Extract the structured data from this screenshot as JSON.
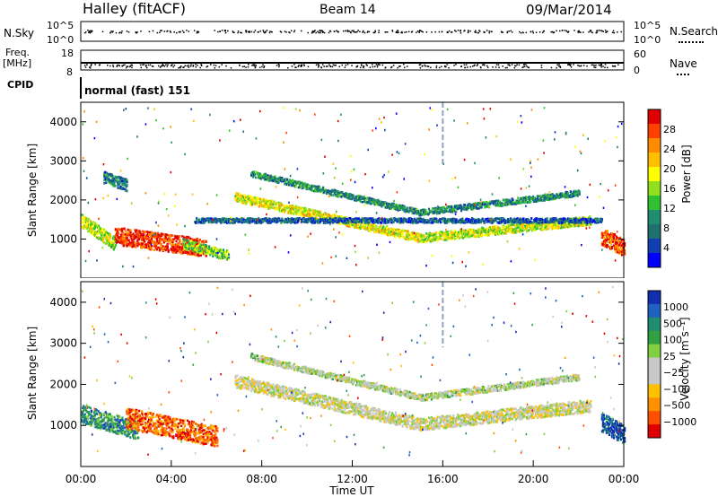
{
  "header": {
    "station": "Halley (fitACF)",
    "beam": "Beam 14",
    "date": "09/Mar/2014"
  },
  "strips": {
    "nsky_label": "N.Sky",
    "nsky_ticks": [
      "10^5",
      "10^0"
    ],
    "nsearch_label": "N.Search",
    "nsearch_ticks": [
      "10^5",
      "10^0"
    ],
    "freq_label": "Freq.",
    "freq_unit": "[MHz]",
    "freq_ticks": [
      "18",
      "8"
    ],
    "nave_label": "Nave",
    "nave_ticks": [
      "60",
      "0"
    ],
    "cpid_label": "CPID",
    "cpid_text": "normal (fast) 151"
  },
  "chart_data": [
    {
      "type": "heatmap",
      "name": "power",
      "ylabel": "Slant Range [km]",
      "ylim": [
        0,
        4500
      ],
      "yticks": [
        1000,
        2000,
        3000,
        4000
      ],
      "xlim": [
        0,
        24
      ],
      "colorbar": {
        "label": "Power [dB]",
        "ticks": [
          "28",
          "24",
          "20",
          "16",
          "12",
          "8",
          "4"
        ],
        "colors": [
          "#e00000",
          "#ff4000",
          "#ff8c00",
          "#ffc000",
          "#ffff00",
          "#90e020",
          "#30c030",
          "#208c70",
          "#207070",
          "#1040b0",
          "#0000ff"
        ]
      },
      "echo_bands": [
        {
          "t0": 0.0,
          "t1": 1.5,
          "r_start": 1500,
          "r_end": 900,
          "width": 350,
          "level": 0.55
        },
        {
          "t0": 1.0,
          "t1": 2.0,
          "r_start": 2600,
          "r_end": 2400,
          "width": 300,
          "level": 0.25
        },
        {
          "t0": 1.5,
          "t1": 5.5,
          "r_start": 1100,
          "r_end": 800,
          "width": 450,
          "level": 0.9
        },
        {
          "t0": 4.5,
          "t1": 6.5,
          "r_start": 900,
          "r_end": 600,
          "width": 250,
          "level": 0.45
        },
        {
          "t0": 6.8,
          "t1": 15.0,
          "r_start": 2100,
          "r_end": 1050,
          "width": 220,
          "level": 0.6
        },
        {
          "t0": 15.0,
          "t1": 22.5,
          "r_start": 1050,
          "r_end": 1500,
          "width": 220,
          "level": 0.55
        },
        {
          "t0": 7.5,
          "t1": 15.0,
          "r_start": 2700,
          "r_end": 1700,
          "width": 150,
          "level": 0.3
        },
        {
          "t0": 15.0,
          "t1": 22.0,
          "r_start": 1700,
          "r_end": 2200,
          "width": 150,
          "level": 0.3
        },
        {
          "t0": 5.0,
          "t1": 23.0,
          "r_start": 1500,
          "r_end": 1500,
          "width": 120,
          "level": 0.2
        },
        {
          "t0": 23.0,
          "t1": 24.0,
          "r_start": 1100,
          "r_end": 800,
          "width": 450,
          "level": 0.85
        }
      ]
    },
    {
      "type": "heatmap",
      "name": "velocity",
      "ylabel": "Slant Range [km]",
      "xlabel": "Time UT",
      "ylim": [
        0,
        4500
      ],
      "yticks": [
        1000,
        2000,
        3000,
        4000
      ],
      "xlim": [
        0,
        24
      ],
      "xticks": [
        "00:00",
        "04:00",
        "08:00",
        "12:00",
        "16:00",
        "20:00",
        "00:00"
      ],
      "colorbar": {
        "label": "Velocity [m s⁻¹]",
        "ticks": [
          "1000",
          "500",
          "100",
          "25",
          "−25",
          "−100",
          "−500",
          "−1000"
        ],
        "colors": [
          "#1030b0",
          "#2060c0",
          "#208c70",
          "#30a040",
          "#80d040",
          "#c8c8c8",
          "#c8c8c8",
          "#ffc000",
          "#ff9000",
          "#ff5000",
          "#e00000"
        ]
      },
      "echo_bands": [
        {
          "t0": 0.0,
          "t1": 2.5,
          "r_start": 1300,
          "r_end": 900,
          "width": 450,
          "level": 0.25
        },
        {
          "t0": 2.0,
          "t1": 6.0,
          "r_start": 1200,
          "r_end": 750,
          "width": 500,
          "level": 0.85
        },
        {
          "t0": 6.8,
          "t1": 15.0,
          "r_start": 2100,
          "r_end": 1050,
          "width": 300,
          "level": 0.55
        },
        {
          "t0": 15.0,
          "t1": 22.5,
          "r_start": 1050,
          "r_end": 1500,
          "width": 300,
          "level": 0.55
        },
        {
          "t0": 7.5,
          "t1": 15.0,
          "r_start": 2700,
          "r_end": 1700,
          "width": 150,
          "level": 0.5
        },
        {
          "t0": 15.0,
          "t1": 22.0,
          "r_start": 1700,
          "r_end": 2200,
          "width": 150,
          "level": 0.5
        },
        {
          "t0": 23.0,
          "t1": 24.0,
          "r_start": 1100,
          "r_end": 800,
          "width": 450,
          "level": 0.1
        }
      ]
    }
  ]
}
